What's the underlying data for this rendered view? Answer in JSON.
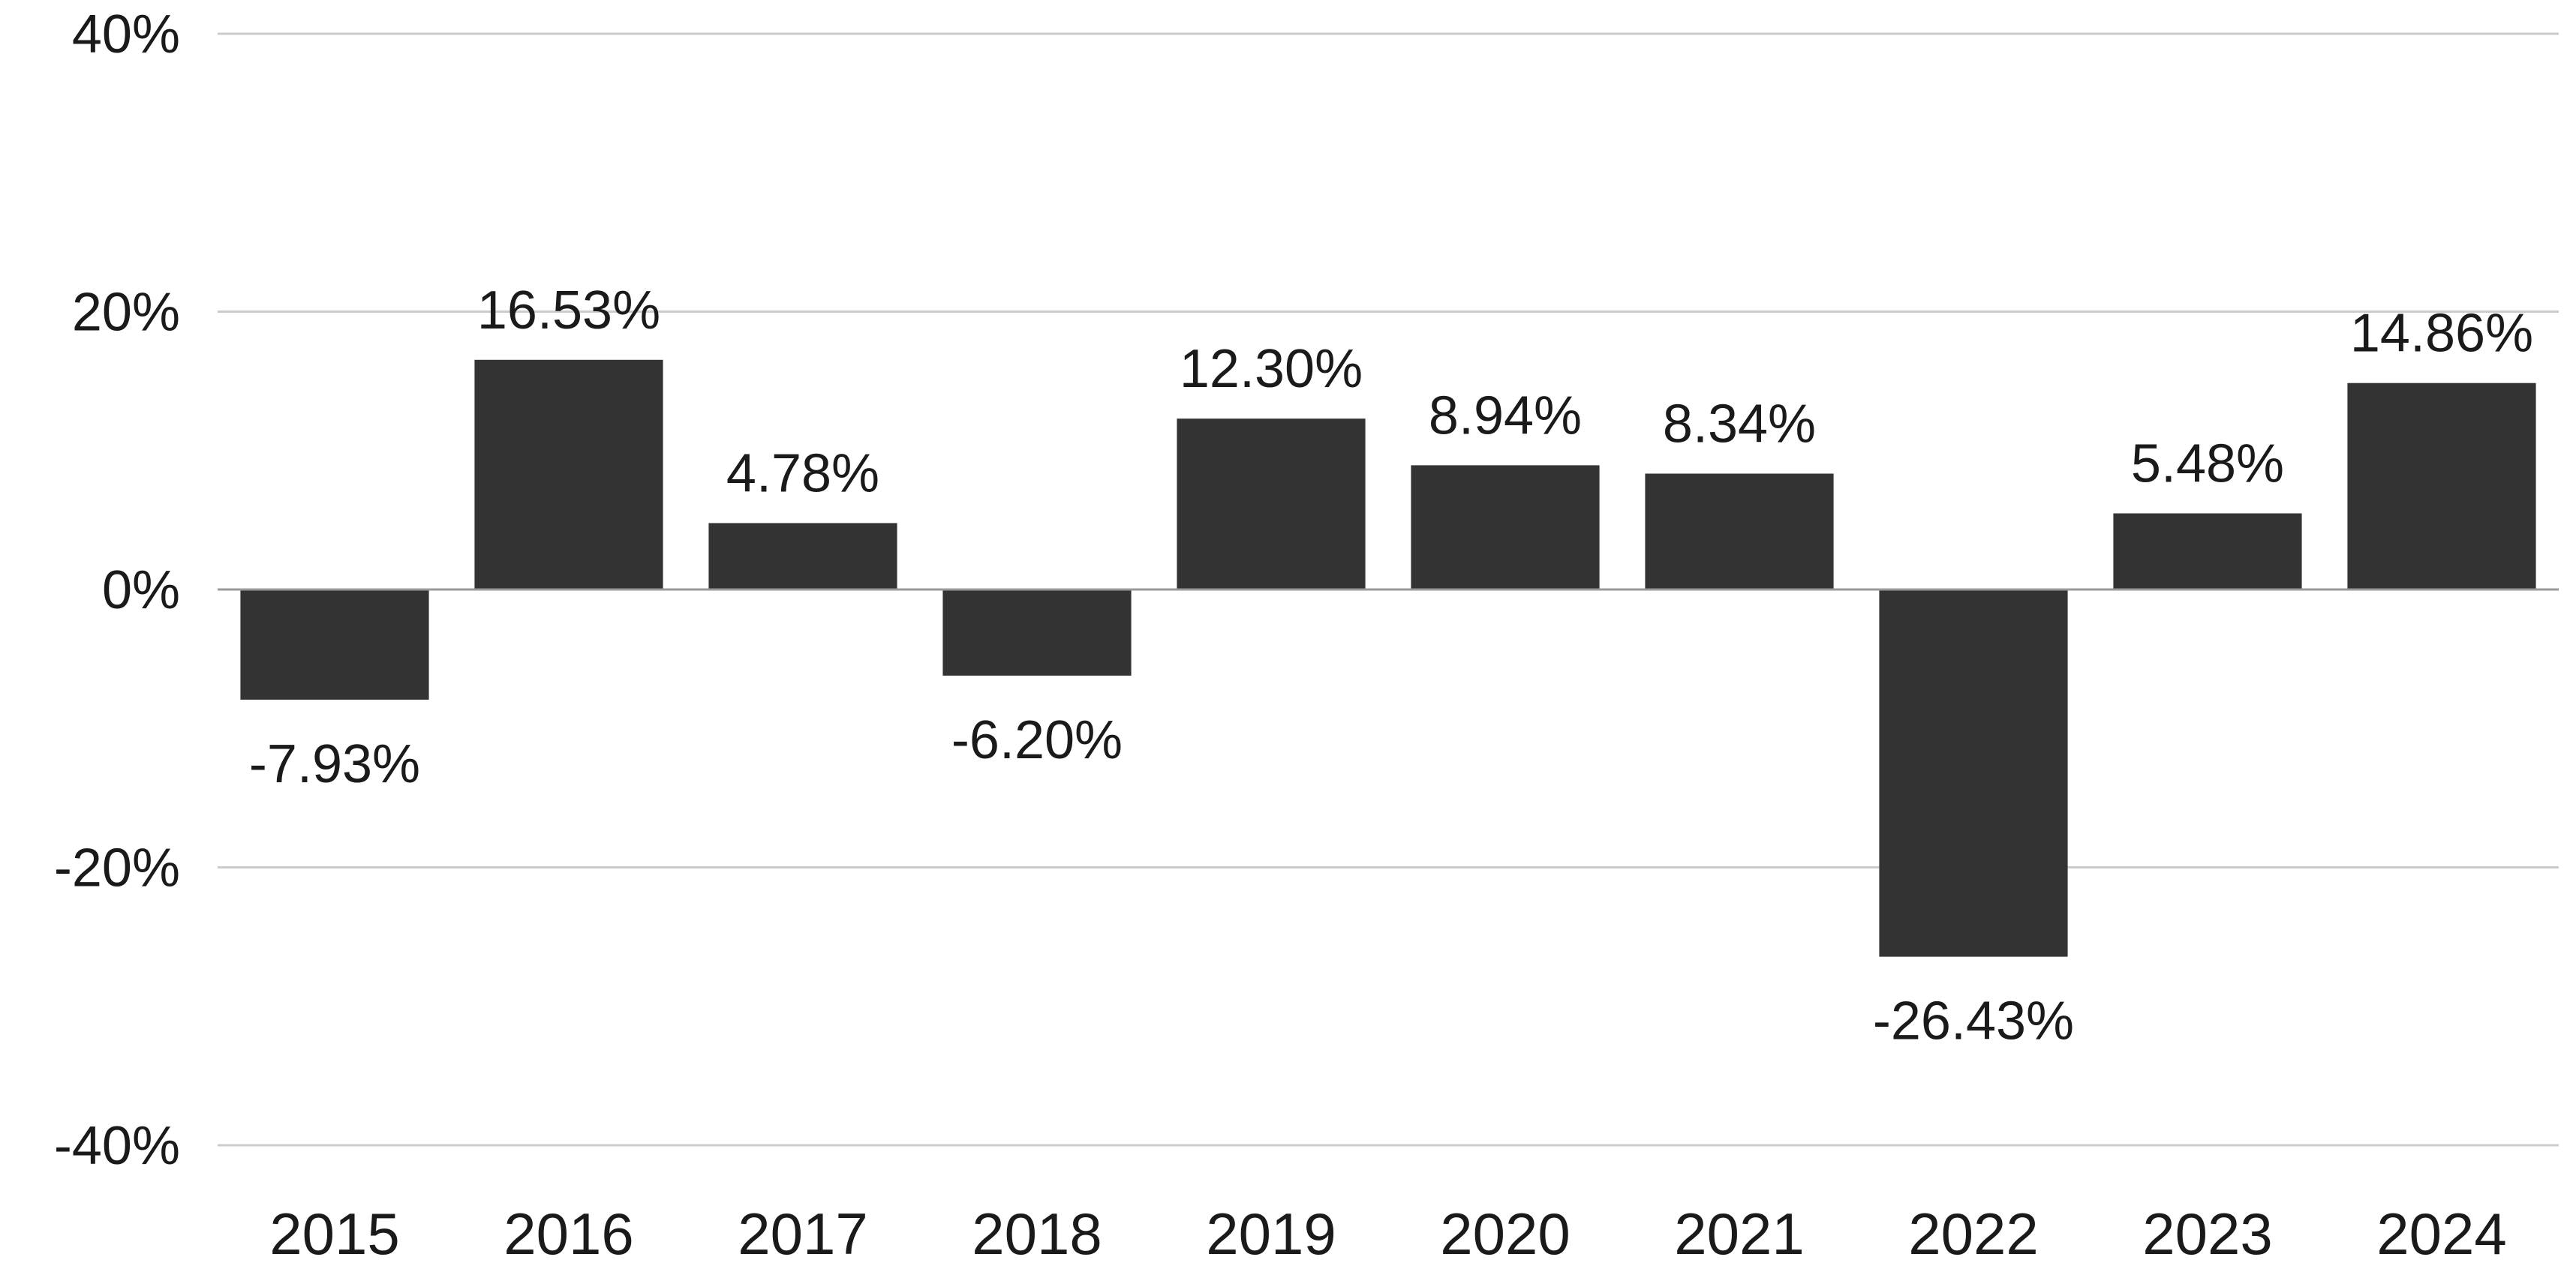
{
  "chart_data": {
    "type": "bar",
    "categories": [
      "2015",
      "2016",
      "2017",
      "2018",
      "2019",
      "2020",
      "2021",
      "2022",
      "2023",
      "2024"
    ],
    "values": [
      -7.93,
      16.53,
      4.78,
      -6.2,
      12.3,
      8.94,
      8.34,
      -26.43,
      5.48,
      14.86
    ],
    "data_labels": [
      "-7.93%",
      "16.53%",
      "4.78%",
      "-6.20%",
      "12.30%",
      "8.94%",
      "8.34%",
      "-26.43%",
      "5.48%",
      "14.86%"
    ],
    "y_ticks": [
      {
        "value": 40,
        "label": "40%"
      },
      {
        "value": 20,
        "label": "20%"
      },
      {
        "value": 0,
        "label": "0%"
      },
      {
        "value": -20,
        "label": "-20%"
      },
      {
        "value": -40,
        "label": "-40%"
      }
    ],
    "ylim": [
      -40,
      40
    ],
    "title": "",
    "xlabel": "",
    "ylabel": "",
    "grid": true,
    "legend": "none",
    "bar_color": "#333333",
    "grid_color": "#cccccc",
    "zero_line_color": "#999999"
  }
}
